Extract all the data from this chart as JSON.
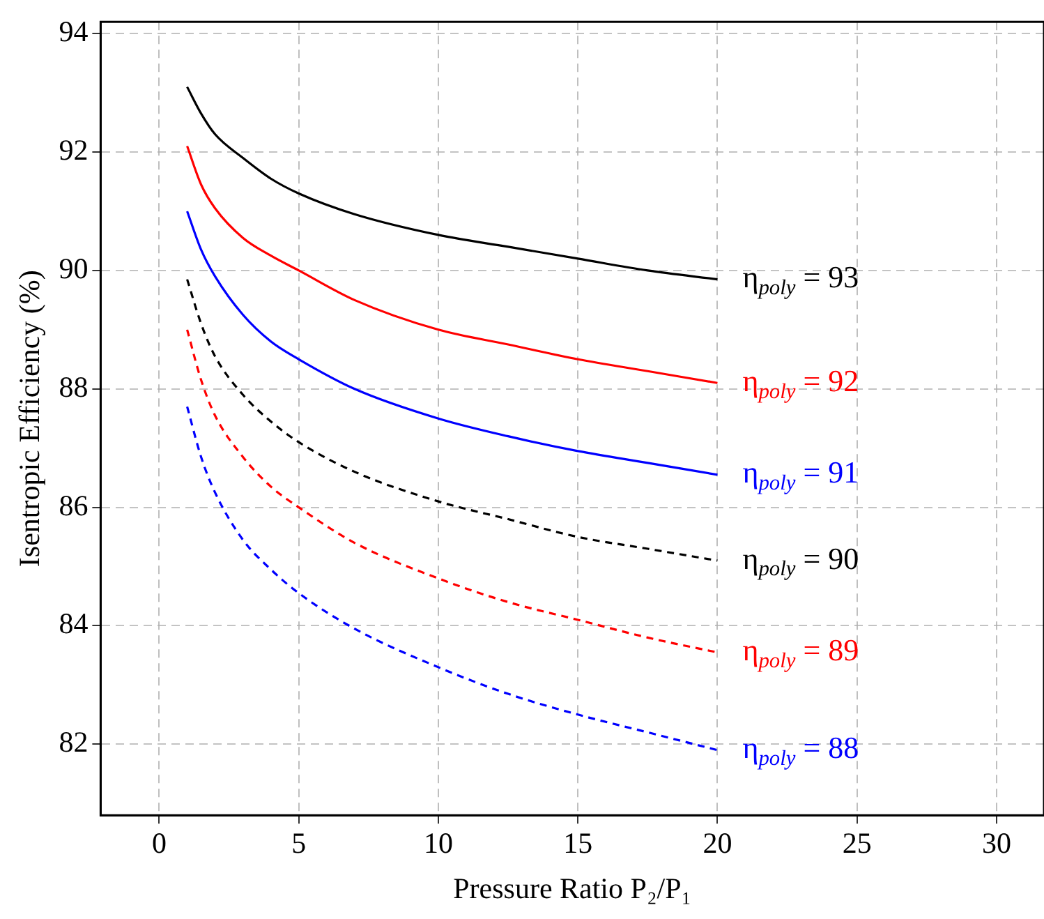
{
  "chart_data": {
    "type": "line",
    "xlabel": "Pressure Ratio P₂/P₁",
    "ylabel": "Isentropic Efficiency (%)",
    "x": [
      1,
      1.5,
      2,
      3,
      4,
      5,
      7,
      10,
      12.5,
      15,
      17.5,
      20
    ],
    "xlim": [
      -2.1,
      31.7
    ],
    "xticks": [
      0,
      5,
      10,
      15,
      20,
      25,
      30
    ],
    "ylim": [
      80.8,
      94.2
    ],
    "yticks": [
      82,
      84,
      86,
      88,
      90,
      92,
      94
    ],
    "grid": true,
    "legend": false,
    "marker": "none",
    "series": [
      {
        "name": "η$_{poly}$ = 93",
        "color": "#000000",
        "line_style": "solid",
        "values": [
          93.1,
          92.65,
          92.3,
          91.9,
          91.55,
          91.3,
          90.95,
          90.6,
          90.4,
          90.2,
          90.0,
          89.85
        ]
      },
      {
        "name": "η$_{poly}$ = 92",
        "color": "#ff0000",
        "line_style": "solid",
        "values": [
          92.1,
          91.45,
          91.05,
          90.55,
          90.25,
          90.0,
          89.5,
          89.0,
          88.75,
          88.5,
          88.3,
          88.1
        ]
      },
      {
        "name": "η$_{poly}$ = 91",
        "color": "#0000ff",
        "line_style": "solid",
        "values": [
          91.0,
          90.35,
          89.9,
          89.25,
          88.8,
          88.5,
          88.0,
          87.5,
          87.2,
          86.95,
          86.75,
          86.55
        ]
      },
      {
        "name": "η$_{poly}$ = 90",
        "color": "#000000",
        "line_style": "dashed",
        "values": [
          89.85,
          89.1,
          88.55,
          87.9,
          87.45,
          87.1,
          86.6,
          86.1,
          85.8,
          85.5,
          85.3,
          85.1
        ]
      },
      {
        "name": "η$_{poly}$ = 89",
        "color": "#ff0000",
        "line_style": "dashed",
        "values": [
          89.0,
          88.15,
          87.55,
          86.85,
          86.35,
          86.0,
          85.4,
          84.8,
          84.4,
          84.1,
          83.8,
          83.55
        ]
      },
      {
        "name": "η$_{poly}$ = 88",
        "color": "#0000ff",
        "line_style": "dashed",
        "values": [
          87.7,
          86.85,
          86.25,
          85.45,
          84.95,
          84.55,
          83.95,
          83.3,
          82.85,
          82.5,
          82.2,
          81.9
        ]
      }
    ]
  }
}
